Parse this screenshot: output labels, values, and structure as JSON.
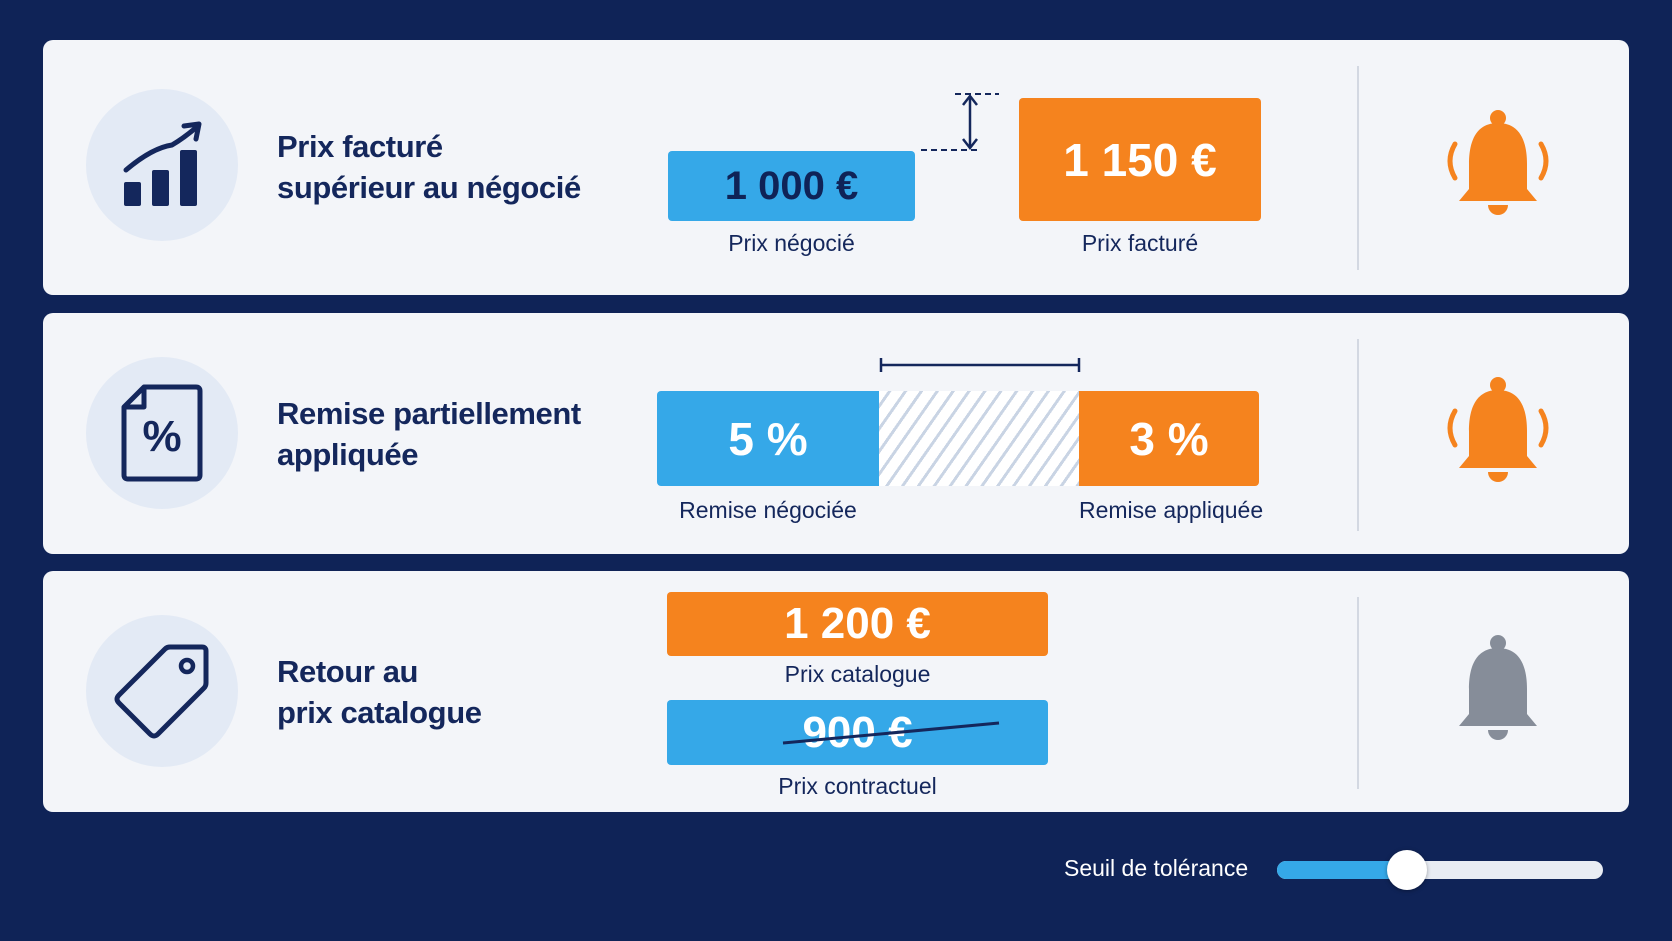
{
  "colors": {
    "background": "#0f2357",
    "card": "#f3f5f9",
    "blue": "#35a8e8",
    "orange": "#f5831e",
    "navy": "#14275c",
    "bell_active": "#f5831e",
    "bell_inactive": "#868d99"
  },
  "cards": [
    {
      "icon": "chart-trend-up-icon",
      "title_line1": "Prix facturé",
      "title_line2": "supérieur au négocié",
      "negotiated_value": "1 000 €",
      "negotiated_label": "Prix négocié",
      "invoiced_value": "1 150 €",
      "invoiced_label": "Prix facturé",
      "alert_icon": "bell-ringing-icon",
      "alert_active": true
    },
    {
      "icon": "percent-tag-icon",
      "title_line1": "Remise partiellement",
      "title_line2": "appliquée",
      "negotiated_value": "5 %",
      "negotiated_label": "Remise négociée",
      "applied_value": "3 %",
      "applied_label": "Remise appliquée",
      "alert_icon": "bell-ringing-icon",
      "alert_active": true
    },
    {
      "icon": "price-tag-icon",
      "title_line1": "Retour au",
      "title_line2": "prix catalogue",
      "catalog_value": "1 200 €",
      "catalog_label": "Prix catalogue",
      "contract_value": "900 €",
      "contract_label": "Prix contractuel",
      "alert_icon": "bell-icon",
      "alert_active": false
    }
  ],
  "tolerance": {
    "label": "Seuil de tolérance",
    "value_fraction": 0.4
  }
}
